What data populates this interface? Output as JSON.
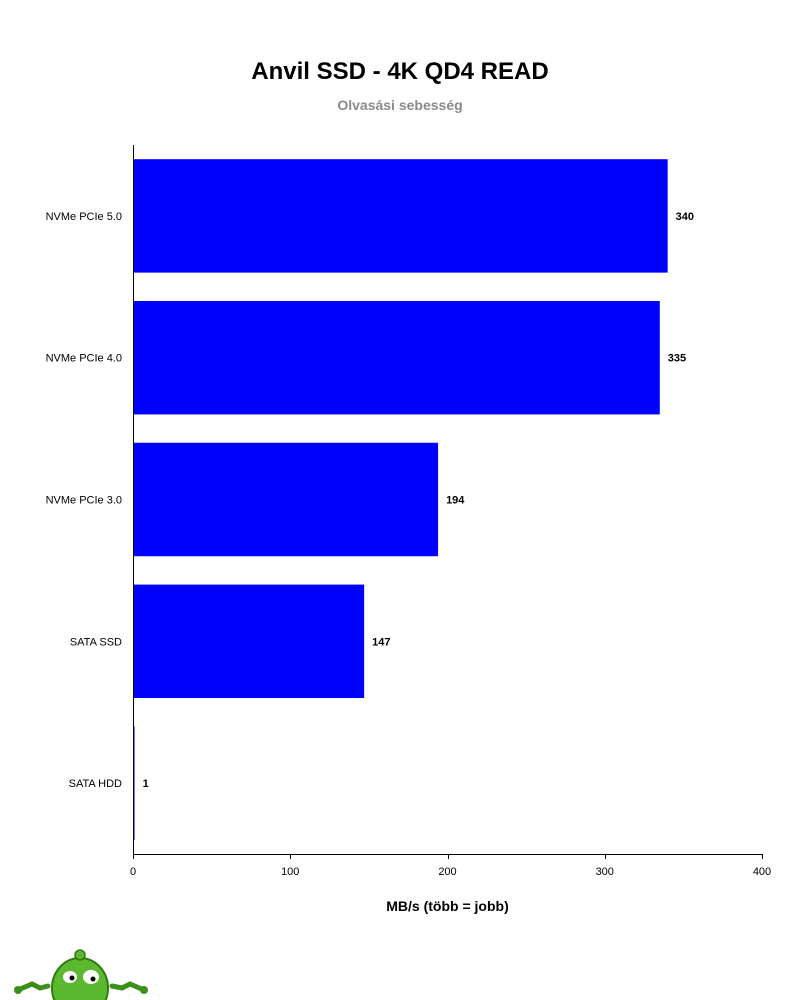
{
  "chart_data": {
    "type": "bar",
    "orientation": "horizontal",
    "title": "Anvil SSD - 4K QD4 READ",
    "subtitle": "Olvasási sebesség",
    "xlabel": "MB/s (több = jobb)",
    "ylabel": "",
    "categories": [
      "NVMe PCIe 5.0",
      "NVMe PCIe 4.0",
      "NVMe PCIe 3.0",
      "SATA SSD",
      "SATA HDD"
    ],
    "values": [
      340,
      335,
      194,
      147,
      1
    ],
    "data_labels": [
      "340",
      "335",
      "194",
      "147",
      "1"
    ],
    "xlim": [
      0,
      400
    ],
    "xticks": [
      0,
      100,
      200,
      300,
      400
    ],
    "bar_color": "#0000ff",
    "grid": false,
    "legend": "none"
  }
}
